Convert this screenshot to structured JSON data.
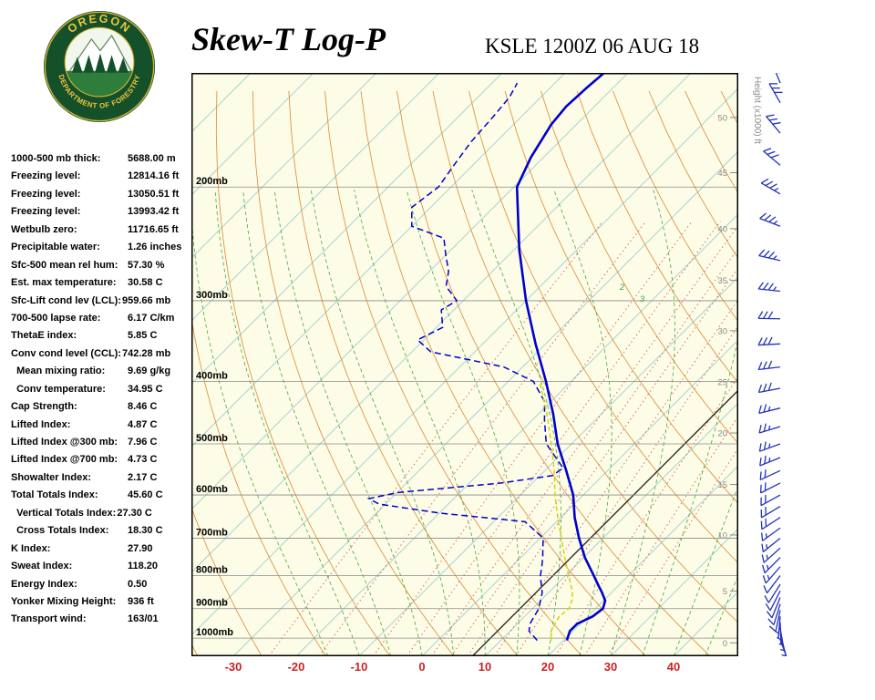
{
  "header": {
    "title": "Skew-T Log-P",
    "station": "KSLE 1200Z 06 AUG 18"
  },
  "logo": {
    "top_text": "OREGON",
    "bottom_text": "DEPARTMENT OF FORESTRY"
  },
  "indices": [
    {
      "label": "1000-500 mb thick:",
      "value": "5688.00 m"
    },
    {
      "label": "Freezing level:",
      "value": "12814.16 ft"
    },
    {
      "label": "Freezing level:",
      "value": "13050.51 ft"
    },
    {
      "label": "Freezing level:",
      "value": "13993.42 ft"
    },
    {
      "label": "Wetbulb zero:",
      "value": "11716.65 ft"
    },
    {
      "label": "Precipitable water:",
      "value": "1.26 inches"
    },
    {
      "label": "Sfc-500 mean rel hum:",
      "value": "57.30 %"
    },
    {
      "label": "Est. max temperature:",
      "value": "30.58 C"
    },
    {
      "label": "Sfc-Lift cond lev (LCL):",
      "value": "959.66 mb"
    },
    {
      "label": "700-500 lapse rate:",
      "value": "6.17 C/km"
    },
    {
      "label": "ThetaE index:",
      "value": "5.85 C"
    },
    {
      "label": "Conv cond level (CCL):",
      "value": "742.28 mb"
    },
    {
      "label": "  Mean mixing ratio:",
      "value": "9.69 g/kg"
    },
    {
      "label": "  Conv temperature:",
      "value": "34.95 C"
    },
    {
      "label": "Cap Strength:",
      "value": "8.46 C"
    },
    {
      "label": "Lifted Index:",
      "value": "4.87 C"
    },
    {
      "label": "Lifted Index @300 mb:",
      "value": "7.96 C"
    },
    {
      "label": "Lifted Index @700 mb:",
      "value": "4.73 C"
    },
    {
      "label": "Showalter Index:",
      "value": "2.17 C"
    },
    {
      "label": "Total Totals Index:",
      "value": "45.60 C"
    },
    {
      "label": "  Vertical Totals Index:",
      "value": "27.30 C"
    },
    {
      "label": "  Cross Totals Index:",
      "value": "18.30 C"
    },
    {
      "label": "K Index:",
      "value": "27.90"
    },
    {
      "label": "Sweat Index:",
      "value": "118.20"
    },
    {
      "label": "Energy Index:",
      "value": "0.50"
    },
    {
      "label": "Yonker Mixing Height:",
      "value": "936 ft"
    },
    {
      "label": "Transport wind:",
      "value": "163/01"
    }
  ],
  "chart_data": {
    "type": "skewt",
    "title": "Skew-T Log-P",
    "station_time": "KSLE 1200Z 06 AUG 18",
    "pressure_range_mb": [
      133,
      1067
    ],
    "pressure_labels": [
      {
        "label": "200mb",
        "p": 200
      },
      {
        "label": "300mb",
        "p": 300
      },
      {
        "label": "400mb",
        "p": 400
      },
      {
        "label": "500mb",
        "p": 500
      },
      {
        "label": "600mb",
        "p": 600
      },
      {
        "label": "700mb",
        "p": 700
      },
      {
        "label": "800mb",
        "p": 800
      },
      {
        "label": "900mb",
        "p": 900
      },
      {
        "label": "1000mb",
        "p": 1000
      }
    ],
    "temp_ticks": [
      -30,
      -20,
      -10,
      0,
      10,
      20,
      30,
      40
    ],
    "ref_line_T": 8,
    "height_axis": {
      "title": "Height (x1000) ft",
      "ticks": [
        {
          "label": "50",
          "p": 156
        },
        {
          "label": "45",
          "p": 190
        },
        {
          "label": "40",
          "p": 232
        },
        {
          "label": "35",
          "p": 279
        },
        {
          "label": "30",
          "p": 334
        },
        {
          "label": "25",
          "p": 401
        },
        {
          "label": "20",
          "p": 481
        },
        {
          "label": "15",
          "p": 578
        },
        {
          "label": "10",
          "p": 692
        },
        {
          "label": "5",
          "p": 845
        },
        {
          "label": "0",
          "p": 1017
        }
      ]
    },
    "annotations": [
      {
        "text": "2",
        "x": 470,
        "y": 238,
        "color": "#3aa03a"
      },
      {
        "text": "3",
        "x": 492,
        "y": 251,
        "color": "#3aa03a"
      }
    ],
    "colors": {
      "background": "#fdfce6",
      "isotherm": "#a9d4d4",
      "dry_adiabat": "#dd8833",
      "moist_adiabat": "#44aa44",
      "mixing_ratio": "#cc6060",
      "pressure_line": "#8a8a8a",
      "profile": "#0000cc",
      "wetbulb": "#d8d200",
      "axis_label": "#cc2222",
      "wind_barb": "#2233bb",
      "ref_line": "#222222"
    },
    "series": [
      {
        "name": "temperature",
        "style": "solid",
        "points": [
          [
            1008,
            20.5
          ],
          [
            975,
            19.5
          ],
          [
            950,
            19.5
          ],
          [
            925,
            20.8
          ],
          [
            900,
            21.2
          ],
          [
            875,
            20.3
          ],
          [
            850,
            18.5
          ],
          [
            825,
            16.5
          ],
          [
            800,
            14.5
          ],
          [
            750,
            10.2
          ],
          [
            700,
            6.2
          ],
          [
            650,
            2.2
          ],
          [
            600,
            -1.6
          ],
          [
            550,
            -6.6
          ],
          [
            500,
            -12.2
          ],
          [
            450,
            -17.6
          ],
          [
            400,
            -24.0
          ],
          [
            350,
            -31.6
          ],
          [
            300,
            -40.0
          ],
          [
            250,
            -49.2
          ],
          [
            200,
            -59.5
          ],
          [
            180,
            -62.0
          ],
          [
            160,
            -64.0
          ],
          [
            150,
            -64.5
          ],
          [
            140,
            -64.2
          ],
          [
            133,
            -63.8
          ]
        ]
      },
      {
        "name": "dewpoint",
        "style": "dashed",
        "points": [
          [
            1008,
            15.8
          ],
          [
            975,
            13.0
          ],
          [
            950,
            12.0
          ],
          [
            925,
            11.5
          ],
          [
            900,
            11.0
          ],
          [
            875,
            10.0
          ],
          [
            850,
            9.0
          ],
          [
            825,
            7.5
          ],
          [
            800,
            6.0
          ],
          [
            775,
            4.8
          ],
          [
            750,
            3.5
          ],
          [
            725,
            2.0
          ],
          [
            700,
            0.5
          ],
          [
            660,
            -5.0
          ],
          [
            640,
            -20.0
          ],
          [
            620,
            -31.0
          ],
          [
            608,
            -33.5
          ],
          [
            595,
            -30.0
          ],
          [
            575,
            -15.0
          ],
          [
            560,
            -8.0
          ],
          [
            545,
            -7.5
          ],
          [
            500,
            -14.0
          ],
          [
            460,
            -18.0
          ],
          [
            430,
            -21.0
          ],
          [
            400,
            -26.0
          ],
          [
            380,
            -33.0
          ],
          [
            360,
            -47.0
          ],
          [
            345,
            -51.0
          ],
          [
            330,
            -49.0
          ],
          [
            310,
            -52.0
          ],
          [
            300,
            -51.0
          ],
          [
            285,
            -55.0
          ],
          [
            270,
            -57.0
          ],
          [
            255,
            -60.0
          ],
          [
            240,
            -63.0
          ],
          [
            230,
            -70.0
          ],
          [
            215,
            -73.0
          ],
          [
            200,
            -72.0
          ],
          [
            185,
            -73.0
          ],
          [
            170,
            -74.0
          ],
          [
            155,
            -74.5
          ],
          [
            145,
            -75.0
          ],
          [
            138,
            -76.0
          ]
        ]
      },
      {
        "name": "wetbulb",
        "style": "dashed",
        "points": [
          [
            1008,
            18.0
          ],
          [
            975,
            16.5
          ],
          [
            950,
            16.0
          ],
          [
            925,
            15.5
          ],
          [
            900,
            15.8
          ],
          [
            875,
            15.0
          ],
          [
            850,
            13.8
          ],
          [
            800,
            10.5
          ],
          [
            750,
            7.0
          ],
          [
            700,
            3.4
          ],
          [
            650,
            -0.5
          ],
          [
            600,
            -4.5
          ],
          [
            550,
            -8.5
          ],
          [
            500,
            -13.2
          ],
          [
            450,
            -18.6
          ],
          [
            400,
            -25.0
          ]
        ]
      }
    ],
    "winds": [
      {
        "p": 1005,
        "dir": 160,
        "spd": 3
      },
      {
        "p": 985,
        "dir": 165,
        "spd": 5
      },
      {
        "p": 965,
        "dir": 170,
        "spd": 5
      },
      {
        "p": 945,
        "dir": 178,
        "spd": 5
      },
      {
        "p": 925,
        "dir": 185,
        "spd": 7
      },
      {
        "p": 905,
        "dir": 192,
        "spd": 8
      },
      {
        "p": 885,
        "dir": 197,
        "spd": 10
      },
      {
        "p": 865,
        "dir": 202,
        "spd": 10
      },
      {
        "p": 845,
        "dir": 207,
        "spd": 10
      },
      {
        "p": 825,
        "dir": 212,
        "spd": 12
      },
      {
        "p": 800,
        "dir": 217,
        "spd": 12
      },
      {
        "p": 775,
        "dir": 221,
        "spd": 13
      },
      {
        "p": 750,
        "dir": 225,
        "spd": 15
      },
      {
        "p": 725,
        "dir": 228,
        "spd": 15
      },
      {
        "p": 700,
        "dir": 231,
        "spd": 15
      },
      {
        "p": 675,
        "dir": 234,
        "spd": 17
      },
      {
        "p": 650,
        "dir": 237,
        "spd": 18
      },
      {
        "p": 625,
        "dir": 239,
        "spd": 18
      },
      {
        "p": 600,
        "dir": 241,
        "spd": 20
      },
      {
        "p": 575,
        "dir": 243,
        "spd": 20
      },
      {
        "p": 550,
        "dir": 245,
        "spd": 22
      },
      {
        "p": 525,
        "dir": 248,
        "spd": 23
      },
      {
        "p": 500,
        "dir": 250,
        "spd": 25
      },
      {
        "p": 470,
        "dir": 253,
        "spd": 25
      },
      {
        "p": 440,
        "dir": 256,
        "spd": 27
      },
      {
        "p": 410,
        "dir": 259,
        "spd": 28
      },
      {
        "p": 380,
        "dir": 263,
        "spd": 30
      },
      {
        "p": 350,
        "dir": 267,
        "spd": 30
      },
      {
        "p": 320,
        "dir": 271,
        "spd": 32
      },
      {
        "p": 290,
        "dir": 276,
        "spd": 33
      },
      {
        "p": 260,
        "dir": 283,
        "spd": 35
      },
      {
        "p": 230,
        "dir": 291,
        "spd": 35
      },
      {
        "p": 205,
        "dir": 300,
        "spd": 33
      },
      {
        "p": 185,
        "dir": 310,
        "spd": 32
      },
      {
        "p": 165,
        "dir": 320,
        "spd": 30
      },
      {
        "p": 148,
        "dir": 330,
        "spd": 28
      },
      {
        "p": 138,
        "dir": 338,
        "spd": 27
      }
    ]
  }
}
